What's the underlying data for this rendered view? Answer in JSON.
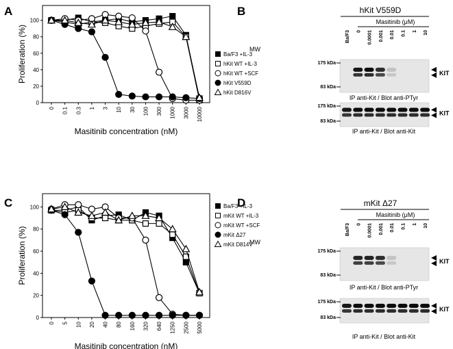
{
  "panels": [
    "A",
    "B",
    "C",
    "D"
  ],
  "chart_data": [
    {
      "type": "line",
      "x_label": "Masitinib concentration (nM)",
      "y_label": "Proliferation (%)",
      "categories": [
        "0",
        "0.1",
        "0.3",
        "1",
        "3",
        "10",
        "30",
        "100",
        "300",
        "1000",
        "3000",
        "10000"
      ],
      "ylim": [
        0,
        118
      ],
      "yticks": [
        0,
        20,
        40,
        60,
        80,
        100
      ],
      "series": [
        {
          "name": "Ba/F3 +IL-3",
          "color": "#000000",
          "marker": "square",
          "filled": true,
          "values": [
            100,
            100,
            103,
            98,
            100,
            102,
            98,
            100,
            102,
            105,
            82,
            5
          ]
        },
        {
          "name": "hKit WT +IL-3",
          "color": "#000000",
          "marker": "square",
          "filled": false,
          "values": [
            100,
            98,
            95,
            98,
            97,
            93,
            90,
            93,
            96,
            98,
            80,
            3
          ]
        },
        {
          "name": "hKit WT +SCF",
          "color": "#000000",
          "marker": "circle",
          "filled": false,
          "values": [
            100,
            102,
            100,
            102,
            107,
            105,
            103,
            87,
            37,
            5,
            3,
            3
          ]
        },
        {
          "name": "hKit V559D",
          "color": "#000000",
          "marker": "circle",
          "filled": true,
          "values": [
            100,
            95,
            90,
            86,
            55,
            10,
            8,
            7,
            7,
            7,
            6,
            5
          ]
        },
        {
          "name": "hKit D816V",
          "color": "#000000",
          "marker": "triangle",
          "filled": false,
          "values": [
            100,
            100,
            97,
            95,
            100,
            98,
            95,
            97,
            98,
            92,
            80,
            6
          ]
        }
      ]
    },
    {
      "type": "line",
      "x_label": "Masitinib concentration (nM)",
      "y_label": "Proliferation (%)",
      "categories": [
        "0",
        "5",
        "10",
        "20",
        "40",
        "80",
        "160",
        "320",
        "640",
        "1250",
        "2500",
        "5000"
      ],
      "ylim": [
        0,
        112
      ],
      "yticks": [
        0,
        20,
        40,
        60,
        80,
        100
      ],
      "series": [
        {
          "name": "Ba/F3 +IL-3",
          "color": "#000000",
          "marker": "square",
          "filled": true,
          "values": [
            97,
            97,
            100,
            88,
            92,
            93,
            88,
            95,
            92,
            72,
            50,
            22
          ]
        },
        {
          "name": "mKit WT +IL-3",
          "color": "#000000",
          "marker": "square",
          "filled": false,
          "values": [
            97,
            95,
            97,
            90,
            90,
            88,
            88,
            85,
            85,
            75,
            55,
            22
          ]
        },
        {
          "name": "mKit WT +SCF",
          "color": "#000000",
          "marker": "circle",
          "filled": false,
          "values": [
            98,
            102,
            102,
            98,
            100,
            90,
            90,
            70,
            18,
            3,
            2,
            2
          ]
        },
        {
          "name": "mKit Δ27",
          "color": "#000000",
          "marker": "circle",
          "filled": true,
          "values": [
            97,
            93,
            77,
            33,
            2,
            2,
            2,
            2,
            2,
            2,
            2,
            2
          ]
        },
        {
          "name": "mKit D814V",
          "color": "#000000",
          "marker": "triangle",
          "filled": false,
          "values": [
            98,
            100,
            95,
            92,
            95,
            88,
            92,
            92,
            90,
            80,
            62,
            23
          ]
        }
      ]
    }
  ],
  "blots": [
    {
      "title": "hKit V559D",
      "treatment": "Masitinib (μM)",
      "mw": "MW",
      "lanes": [
        "Ba/F3",
        "0",
        "0.0001",
        "0.001",
        "0.01",
        "0.1",
        "1",
        "10"
      ],
      "gels": [
        {
          "markers": [
            "175 kDa",
            "83 kDa"
          ],
          "target": "KIT",
          "caption": "IP anti-Kit / Blot anti-PTyr"
        },
        {
          "markers": [
            "175 kDa",
            "83 kDa"
          ],
          "target": "KIT",
          "caption": "IP anti-Kit / Blot anti-Kit"
        }
      ]
    },
    {
      "title": "mKit Δ27",
      "treatment": "Masitinib (μM)",
      "mw": "MW",
      "lanes": [
        "Ba/F3",
        "0",
        "0.0001",
        "0.001",
        "0.01",
        "0.1",
        "1",
        "10"
      ],
      "gels": [
        {
          "markers": [
            "175 kDa",
            "83 kDa"
          ],
          "target": "KIT",
          "caption": "IP anti-Kit / Blot anti-PTyr"
        },
        {
          "markers": [
            "175 kDa",
            "83 kDa"
          ],
          "target": "KIT",
          "caption": "IP anti-Kit / Blot anti-Kit"
        }
      ]
    }
  ]
}
